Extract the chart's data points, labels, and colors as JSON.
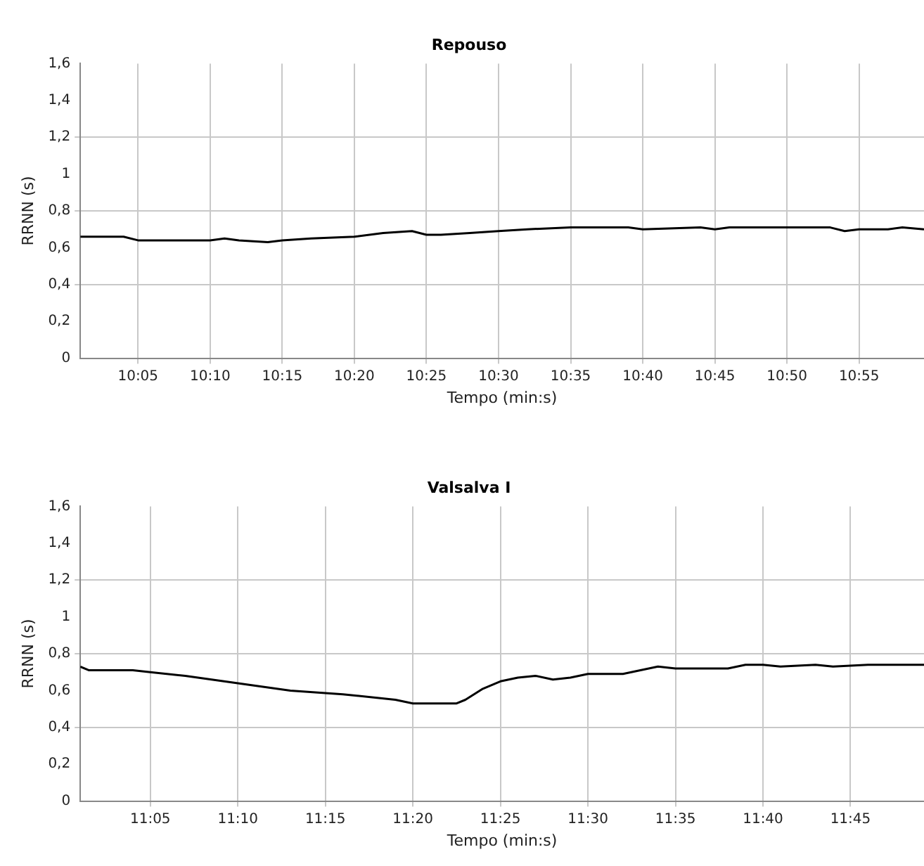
{
  "chart_data": [
    {
      "type": "line",
      "title": "Repouso",
      "xlabel": "Tempo (min:s)",
      "ylabel": "RRNN (s)",
      "grid": true,
      "legend": false,
      "marker": "none",
      "line_style": "solid",
      "xlim": [
        601,
        659.5
      ],
      "ylim": [
        0,
        1.6
      ],
      "xticks": [
        {
          "value": 605,
          "label": "10:05"
        },
        {
          "value": 610,
          "label": "10:10"
        },
        {
          "value": 615,
          "label": "10:15"
        },
        {
          "value": 620,
          "label": "10:20"
        },
        {
          "value": 625,
          "label": "10:25"
        },
        {
          "value": 630,
          "label": "10:30"
        },
        {
          "value": 635,
          "label": "10:35"
        },
        {
          "value": 640,
          "label": "10:40"
        },
        {
          "value": 645,
          "label": "10:45"
        },
        {
          "value": 650,
          "label": "10:50"
        },
        {
          "value": 655,
          "label": "10:55"
        }
      ],
      "yticks": [
        {
          "value": 0,
          "label": "0"
        },
        {
          "value": 0.2,
          "label": "0,2"
        },
        {
          "value": 0.4,
          "label": "0,4"
        },
        {
          "value": 0.6,
          "label": "0,6"
        },
        {
          "value": 0.8,
          "label": "0,8"
        },
        {
          "value": 1,
          "label": "1"
        },
        {
          "value": 1.2,
          "label": "1,2"
        },
        {
          "value": 1.4,
          "label": "1,4"
        },
        {
          "value": 1.6,
          "label": "1,6"
        }
      ],
      "series": [
        {
          "color": "#000000",
          "x": [
            601,
            604,
            605,
            610,
            611,
            612,
            614,
            615,
            617,
            620,
            622,
            624,
            625,
            626,
            628,
            630,
            632,
            635,
            639,
            640,
            644,
            645,
            646,
            650,
            653,
            654,
            655,
            657,
            658,
            659.5
          ],
          "values": [
            0.66,
            0.66,
            0.64,
            0.64,
            0.65,
            0.64,
            0.63,
            0.64,
            0.65,
            0.66,
            0.68,
            0.69,
            0.67,
            0.67,
            0.68,
            0.69,
            0.7,
            0.71,
            0.71,
            0.7,
            0.71,
            0.7,
            0.71,
            0.71,
            0.71,
            0.69,
            0.7,
            0.7,
            0.71,
            0.7
          ]
        }
      ]
    },
    {
      "type": "line",
      "title": "Valsalva I",
      "xlabel": "Tempo (min:s)",
      "ylabel": "RRNN (s)",
      "grid": true,
      "legend": false,
      "marker": "none",
      "line_style": "solid",
      "xlim": [
        661,
        709.2
      ],
      "ylim": [
        0,
        1.6
      ],
      "xticks": [
        {
          "value": 665,
          "label": "11:05"
        },
        {
          "value": 670,
          "label": "11:10"
        },
        {
          "value": 675,
          "label": "11:15"
        },
        {
          "value": 680,
          "label": "11:20"
        },
        {
          "value": 685,
          "label": "11:25"
        },
        {
          "value": 690,
          "label": "11:30"
        },
        {
          "value": 695,
          "label": "11:35"
        },
        {
          "value": 700,
          "label": "11:40"
        },
        {
          "value": 705,
          "label": "11:45"
        }
      ],
      "yticks": [
        {
          "value": 0,
          "label": "0"
        },
        {
          "value": 0.2,
          "label": "0,2"
        },
        {
          "value": 0.4,
          "label": "0,4"
        },
        {
          "value": 0.6,
          "label": "0,6"
        },
        {
          "value": 0.8,
          "label": "0,8"
        },
        {
          "value": 1,
          "label": "1"
        },
        {
          "value": 1.2,
          "label": "1,2"
        },
        {
          "value": 1.4,
          "label": "1,4"
        },
        {
          "value": 1.6,
          "label": "1,6"
        }
      ],
      "series": [
        {
          "color": "#000000",
          "x": [
            661,
            661.5,
            662,
            664,
            665,
            667,
            670,
            673,
            676,
            679,
            680,
            682.5,
            683,
            684,
            685,
            686,
            687,
            688,
            689,
            690,
            692,
            693,
            694,
            695,
            698,
            699,
            700,
            701,
            703,
            704,
            706,
            709.2
          ],
          "values": [
            0.73,
            0.71,
            0.71,
            0.71,
            0.7,
            0.68,
            0.64,
            0.6,
            0.58,
            0.55,
            0.53,
            0.53,
            0.55,
            0.61,
            0.65,
            0.67,
            0.68,
            0.66,
            0.67,
            0.69,
            0.69,
            0.71,
            0.73,
            0.72,
            0.72,
            0.74,
            0.74,
            0.73,
            0.74,
            0.73,
            0.74,
            0.74
          ]
        }
      ]
    }
  ]
}
